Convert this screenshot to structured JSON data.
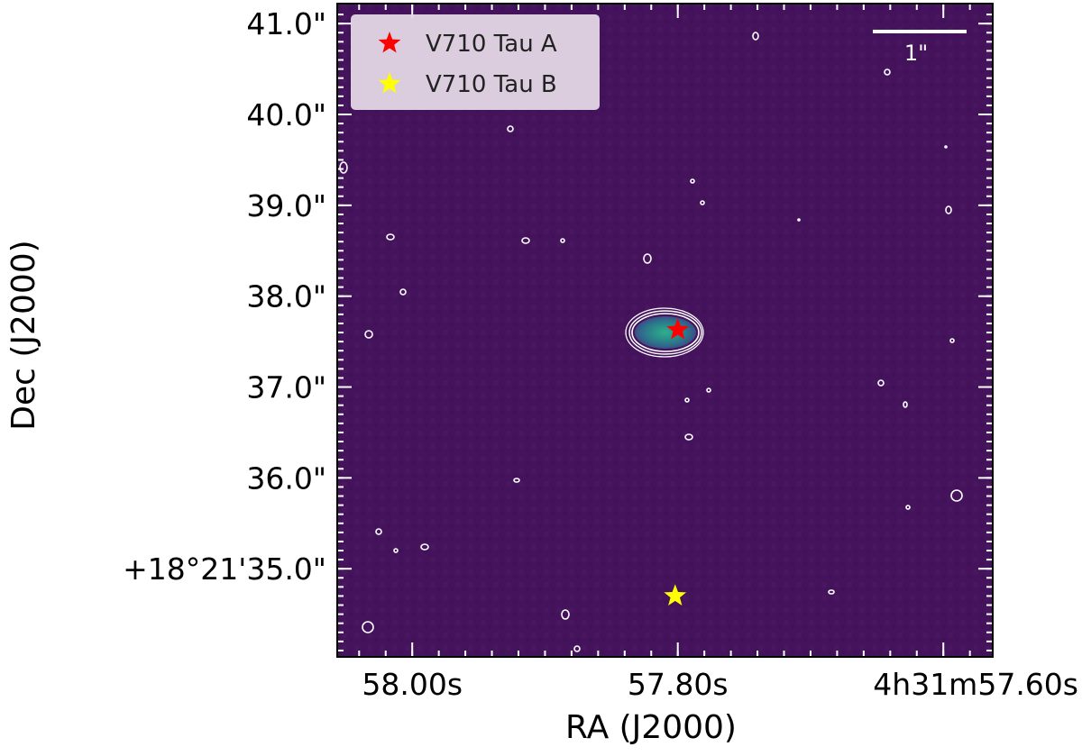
{
  "chart_data": {
    "type": "scatter",
    "title": "",
    "xlabel": "RA (J2000)",
    "ylabel": "Dec (J2000)",
    "x_ticks": [
      {
        "value": 58.0,
        "label": "58.00s"
      },
      {
        "value": 57.8,
        "label": "57.80s"
      },
      {
        "value": 57.6,
        "label": "4h31m57.60s"
      }
    ],
    "y_ticks": [
      {
        "value": 35.0,
        "label": "+18°21'35.0\""
      },
      {
        "value": 36.0,
        "label": "36.0\""
      },
      {
        "value": 37.0,
        "label": "37.0\""
      },
      {
        "value": 38.0,
        "label": "38.0\""
      },
      {
        "value": 39.0,
        "label": "39.0\""
      },
      {
        "value": 40.0,
        "label": "40.0\""
      },
      {
        "value": 41.0,
        "label": "41.0\""
      }
    ],
    "xlim": [
      58.0565,
      57.5628
    ],
    "ylim": [
      34.03,
      41.22
    ],
    "grid": false,
    "legend_position": "top-left",
    "series": [
      {
        "name": "V710 Tau A",
        "color": "#ff0000",
        "marker": "star",
        "x": 57.8,
        "y": 37.63
      },
      {
        "name": "V710 Tau B",
        "color": "#ffff00",
        "marker": "star",
        "x": 57.802,
        "y": 34.7
      }
    ],
    "scale_bar": {
      "label": "1\"",
      "length_arcsec": 1.0
    },
    "background_color": "#44135c",
    "source_colors": [
      "#2a9e8e",
      "#2a7d8b",
      "#325d8c"
    ]
  }
}
